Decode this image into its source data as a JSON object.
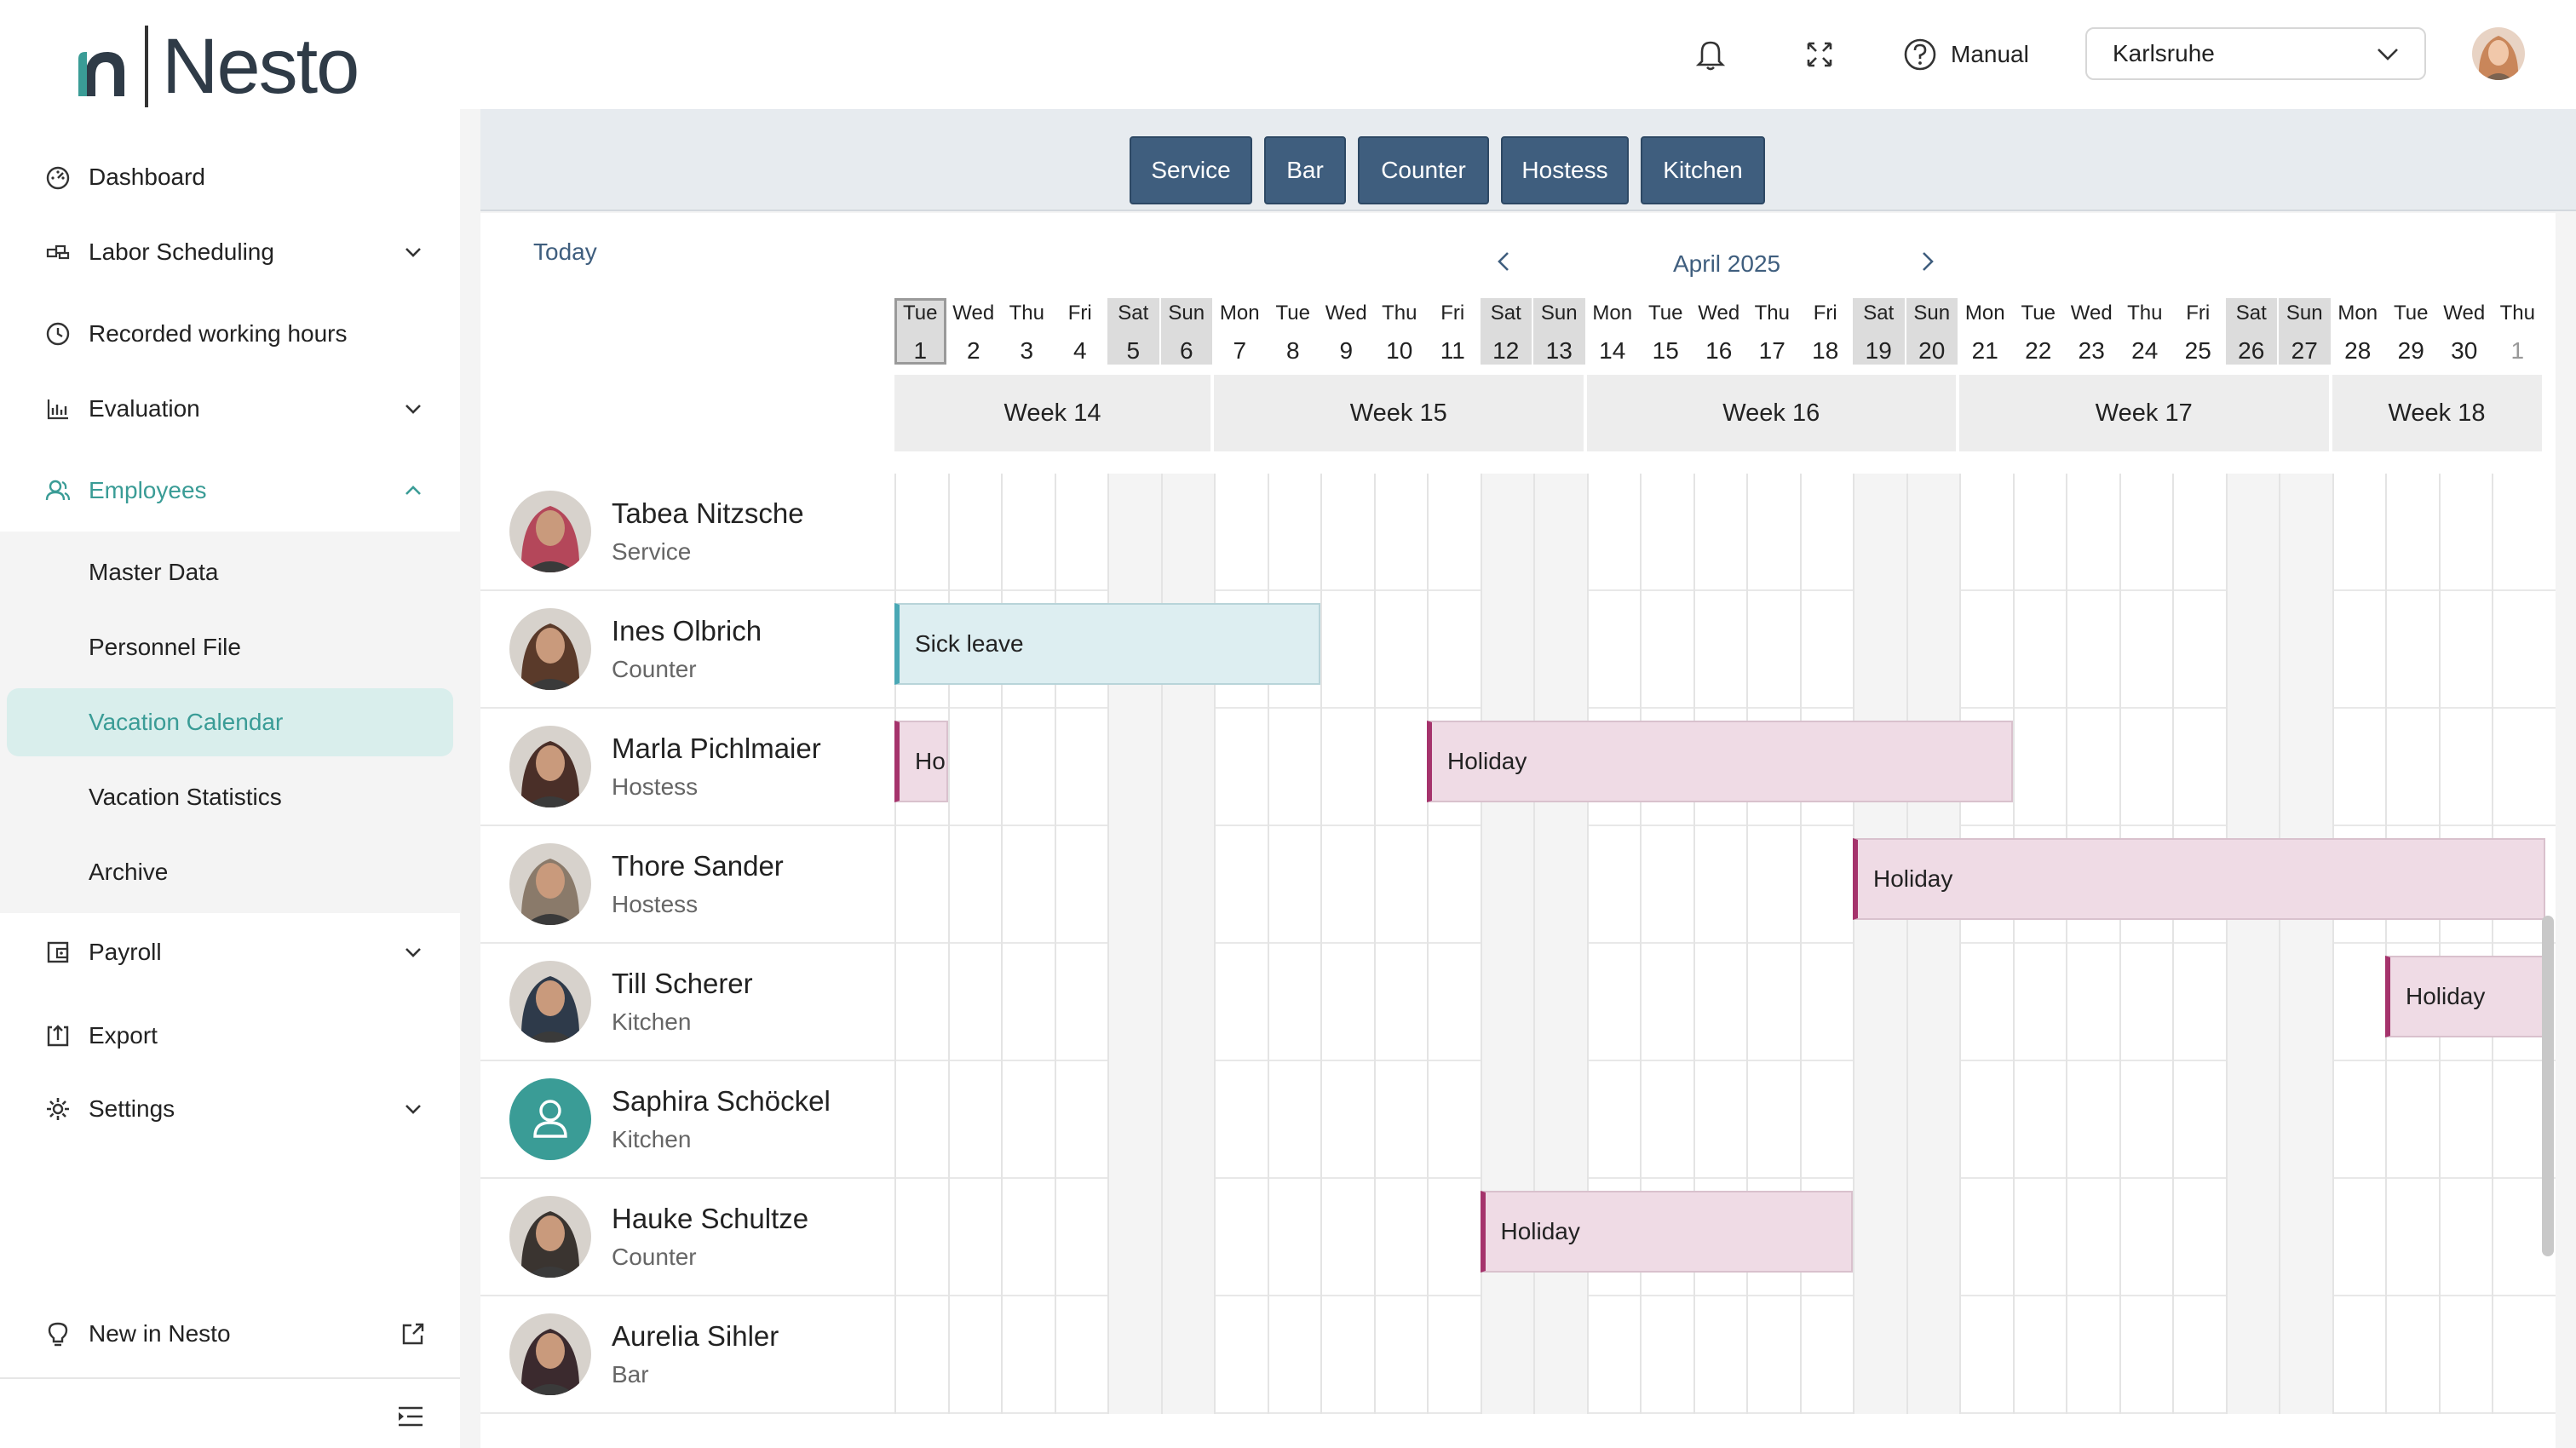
{
  "brand": {
    "name": "Nesto"
  },
  "sidebar": {
    "items": [
      {
        "label": "Dashboard",
        "icon": "dashboard-icon"
      },
      {
        "label": "Labor Scheduling",
        "icon": "schedule-icon",
        "has_children": true
      },
      {
        "label": "Recorded working hours",
        "icon": "clock-icon"
      },
      {
        "label": "Evaluation",
        "icon": "chart-icon",
        "has_children": true
      },
      {
        "label": "Employees",
        "icon": "employees-icon",
        "has_children": true,
        "expanded": true
      },
      {
        "label": "Payroll",
        "icon": "payroll-icon",
        "has_children": true
      },
      {
        "label": "Export",
        "icon": "export-icon"
      },
      {
        "label": "Settings",
        "icon": "gear-icon",
        "has_children": true
      }
    ],
    "employees_sub": [
      {
        "label": "Master Data"
      },
      {
        "label": "Personnel File"
      },
      {
        "label": "Vacation Calendar",
        "active": true
      },
      {
        "label": "Vacation Statistics"
      },
      {
        "label": "Archive"
      }
    ],
    "new_in": "New in Nesto"
  },
  "header": {
    "manual": "Manual",
    "location": "Karlsruhe"
  },
  "filters": [
    "Service",
    "Bar",
    "Counter",
    "Hostess",
    "Kitchen"
  ],
  "calendar": {
    "today_label": "Today",
    "month_label": "April 2025",
    "days": [
      {
        "n": "Tue",
        "d": "1",
        "weekend": false,
        "today": true
      },
      {
        "n": "Wed",
        "d": "2"
      },
      {
        "n": "Thu",
        "d": "3"
      },
      {
        "n": "Fri",
        "d": "4"
      },
      {
        "n": "Sat",
        "d": "5",
        "weekend": true
      },
      {
        "n": "Sun",
        "d": "6",
        "weekend": true
      },
      {
        "n": "Mon",
        "d": "7"
      },
      {
        "n": "Tue",
        "d": "8"
      },
      {
        "n": "Wed",
        "d": "9"
      },
      {
        "n": "Thu",
        "d": "10"
      },
      {
        "n": "Fri",
        "d": "11"
      },
      {
        "n": "Sat",
        "d": "12",
        "weekend": true
      },
      {
        "n": "Sun",
        "d": "13",
        "weekend": true
      },
      {
        "n": "Mon",
        "d": "14"
      },
      {
        "n": "Tue",
        "d": "15"
      },
      {
        "n": "Wed",
        "d": "16"
      },
      {
        "n": "Thu",
        "d": "17"
      },
      {
        "n": "Fri",
        "d": "18"
      },
      {
        "n": "Sat",
        "d": "19",
        "weekend": true
      },
      {
        "n": "Sun",
        "d": "20",
        "weekend": true
      },
      {
        "n": "Mon",
        "d": "21"
      },
      {
        "n": "Tue",
        "d": "22"
      },
      {
        "n": "Wed",
        "d": "23"
      },
      {
        "n": "Thu",
        "d": "24"
      },
      {
        "n": "Fri",
        "d": "25"
      },
      {
        "n": "Sat",
        "d": "26",
        "weekend": true
      },
      {
        "n": "Sun",
        "d": "27",
        "weekend": true
      },
      {
        "n": "Mon",
        "d": "28"
      },
      {
        "n": "Tue",
        "d": "29"
      },
      {
        "n": "Wed",
        "d": "30"
      },
      {
        "n": "Thu",
        "d": "1",
        "next": true
      }
    ],
    "weeks": [
      {
        "label": "Week 14",
        "from": 0,
        "to": 5
      },
      {
        "label": "Week 15",
        "from": 6,
        "to": 12
      },
      {
        "label": "Week 16",
        "from": 13,
        "to": 19
      },
      {
        "label": "Week 17",
        "from": 20,
        "to": 26
      },
      {
        "label": "Week 18",
        "from": 27,
        "to": 30
      }
    ]
  },
  "employees": [
    {
      "name": "Tabea Nitzsche",
      "role": "Service",
      "avatar": "photo",
      "color": "#b4475a",
      "absences": []
    },
    {
      "name": "Ines Olbrich",
      "role": "Counter",
      "avatar": "photo",
      "color": "#5a3a2a",
      "absences": [
        {
          "label": "Sick leave",
          "type": "sick",
          "from": 0,
          "to": 7
        }
      ]
    },
    {
      "name": "Marla Pichlmaier",
      "role": "Hostess",
      "avatar": "photo",
      "color": "#4a2f28",
      "absences": [
        {
          "label": "Hol",
          "type": "holiday",
          "from": 0,
          "to": 0
        },
        {
          "label": "Holiday",
          "type": "holiday",
          "from": 10,
          "to": 20
        }
      ]
    },
    {
      "name": "Thore Sander",
      "role": "Hostess",
      "avatar": "photo",
      "color": "#8a7a6a",
      "absences": [
        {
          "label": "Holiday",
          "type": "holiday",
          "from": 18,
          "to": 30
        }
      ]
    },
    {
      "name": "Till Scherer",
      "role": "Kitchen",
      "avatar": "photo",
      "color": "#2e3a4a",
      "absences": [
        {
          "label": "Holiday",
          "type": "holiday",
          "from": 28,
          "to": 30
        }
      ]
    },
    {
      "name": "Saphira Schöckel",
      "role": "Kitchen",
      "avatar": "placeholder",
      "color": "#3a9c96",
      "absences": []
    },
    {
      "name": "Hauke Schultze",
      "role": "Counter",
      "avatar": "photo",
      "color": "#3a3430",
      "absences": [
        {
          "label": "Holiday",
          "type": "holiday",
          "from": 11,
          "to": 17
        }
      ]
    },
    {
      "name": "Aurelia Sihler",
      "role": "Bar",
      "avatar": "photo",
      "color": "#3b2a2e",
      "absences": []
    }
  ]
}
